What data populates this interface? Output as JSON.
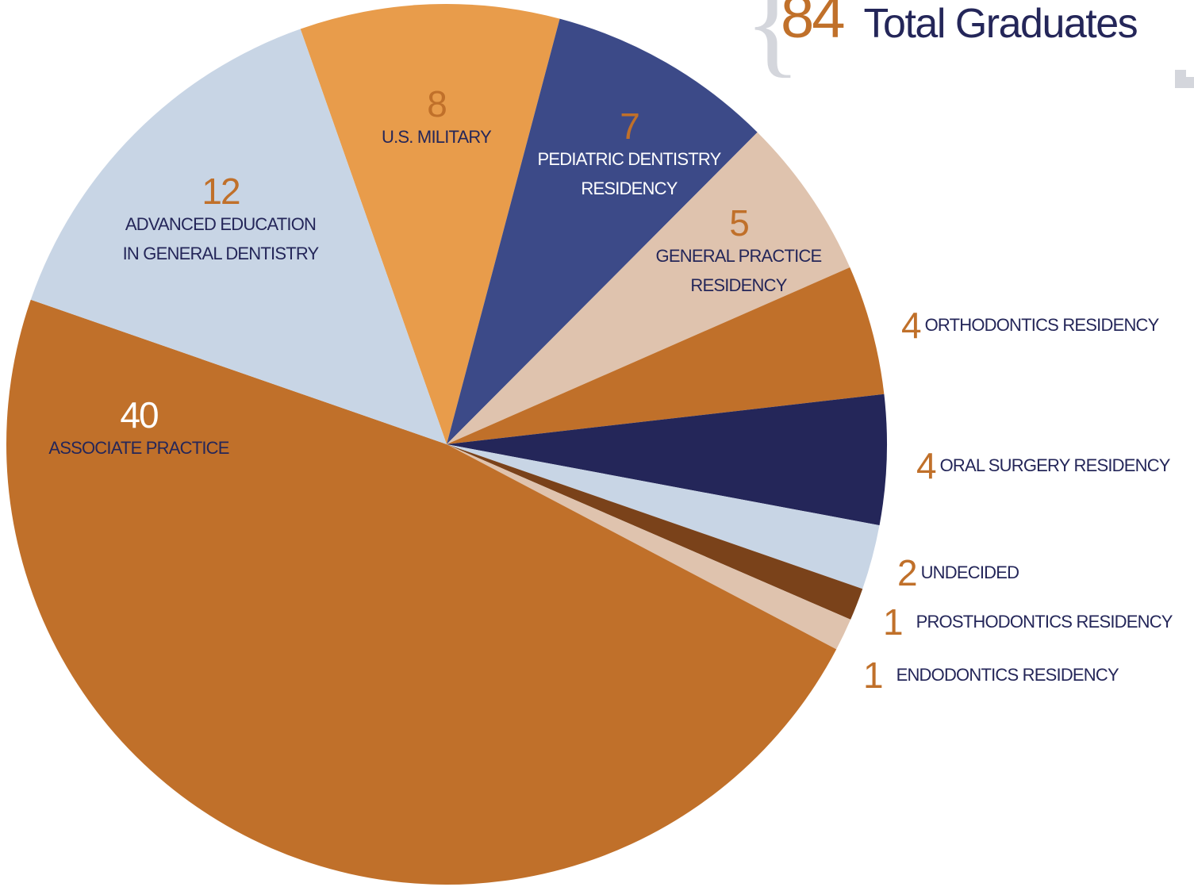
{
  "chart_data": {
    "type": "pie",
    "total": 84,
    "title": "Total Graduates",
    "categories": [
      "U.S. MILITARY",
      "PEDIATRIC DENTISTRY\nRESIDENCY",
      "GENERAL PRACTICE\nRESIDENCY",
      "ORTHODONTICS RESIDENCY",
      "ORAL SURGERY RESIDENCY",
      "UNDECIDED",
      "PROSTHODONTICS RESIDENCY",
      "ENDODONTICS RESIDENCY",
      "ASSOCIATE PRACTICE",
      "ADVANCED EDUCATION\nIN GENERAL DENTISTRY"
    ],
    "values": [
      8,
      7,
      5,
      4,
      4,
      2,
      1,
      1,
      40,
      12
    ],
    "colors": [
      "#e89c4b",
      "#3c4a88",
      "#dfc3ae",
      "#c0702a",
      "#242659",
      "#c8d5e5",
      "#7a421a",
      "#dfc3ae",
      "#c0702a",
      "#c8d5e5"
    ]
  }
}
